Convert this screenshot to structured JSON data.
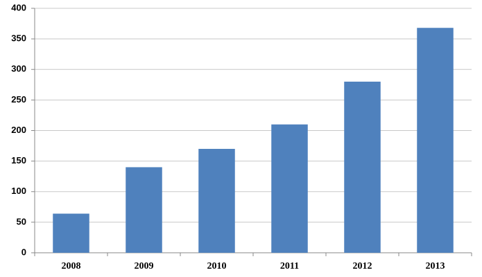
{
  "chart_data": {
    "type": "bar",
    "categories": [
      "2008",
      "2009",
      "2010",
      "2011",
      "2012",
      "2013"
    ],
    "values": [
      64,
      140,
      170,
      210,
      280,
      368
    ],
    "color": "#4f81bd",
    "ylim": [
      0,
      400
    ],
    "yticks": [
      0,
      50,
      100,
      150,
      200,
      250,
      300,
      350,
      400
    ],
    "grid": true
  }
}
